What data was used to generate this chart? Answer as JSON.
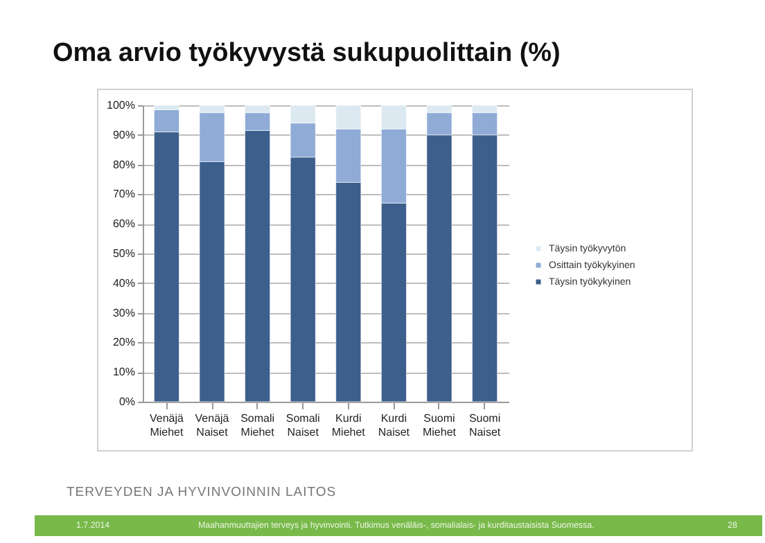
{
  "chart_data": {
    "type": "bar",
    "title": "Oma arvio työkyvystä sukupuolittain (%)",
    "categories": [
      "Venäjä Miehet",
      "Venäjä Naiset",
      "Somali Miehet",
      "Somali Naiset",
      "Kurdi Miehet",
      "Kurdi Naiset",
      "Suomi Miehet",
      "Suomi Naiset"
    ],
    "stacked": true,
    "series": [
      {
        "name": "Täysin työkykyinen",
        "color": "#3d5f8c",
        "values": [
          91,
          81,
          91.5,
          82.5,
          74,
          67,
          90,
          90
        ]
      },
      {
        "name": "Osittain työkykyinen",
        "color": "#8fabd6",
        "values": [
          7.5,
          16.5,
          6,
          11.5,
          18,
          25,
          7.5,
          7.5
        ]
      },
      {
        "name": "Täysin työkyvytön",
        "color": "#dce9f1",
        "values": [
          1.5,
          2.5,
          2.5,
          6,
          8,
          8,
          2.5,
          2.5
        ]
      }
    ],
    "ylim": [
      0,
      100
    ],
    "yticks": [
      {
        "value": 0,
        "label": "0%"
      },
      {
        "value": 10,
        "label": "10%"
      },
      {
        "value": 20,
        "label": "20%"
      },
      {
        "value": 30,
        "label": "30%"
      },
      {
        "value": 40,
        "label": "40%"
      },
      {
        "value": 50,
        "label": "50%"
      },
      {
        "value": 60,
        "label": "60%"
      },
      {
        "value": 70,
        "label": "70%"
      },
      {
        "value": 80,
        "label": "80%"
      },
      {
        "value": 90,
        "label": "90%"
      },
      {
        "value": 100,
        "label": "100%"
      }
    ],
    "grid": "y",
    "legend": "right",
    "annotations": [
      "TERVEYDEN JA HYVINVOINNIN LAITOS",
      "1.7.2014",
      "Maahanmuuttajien terveys ja hyvinvointi. Tutkimus venäläis-, somalialais- ja kurditaustaisista Suomessa.",
      "28"
    ]
  }
}
